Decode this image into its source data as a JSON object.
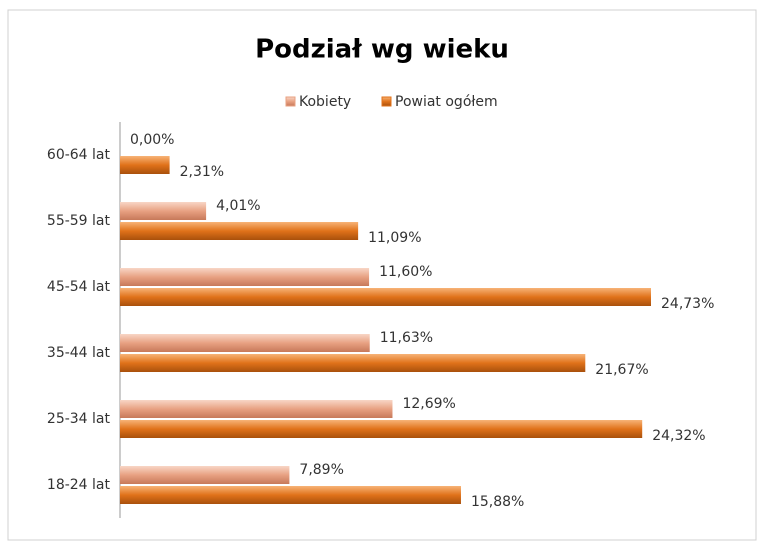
{
  "chart_data": {
    "type": "hbar",
    "title": "Podział wg wieku",
    "categories": [
      "60-64 lat",
      "55-59 lat",
      "45-54 lat",
      "35-44 lat",
      "25-34 lat",
      "18-24 lat"
    ],
    "series": [
      {
        "name": "Kobiety",
        "color": "#e8a182",
        "values": [
          0,
          4.01,
          11.6,
          11.63,
          12.69,
          7.89
        ],
        "value_labels": [
          "0,00%",
          "4,01%",
          "11,60%",
          "11,63%",
          "12,69%",
          "7,89%"
        ]
      },
      {
        "name": "Powiat ogółem",
        "color": "#e0721a",
        "values": [
          2.31,
          11.09,
          24.73,
          21.67,
          24.32,
          15.88
        ],
        "value_labels": [
          "2,31%",
          "11,09%",
          "24,73%",
          "21,67%",
          "24,32%",
          "15,88%"
        ]
      }
    ],
    "legend": "top"
  }
}
